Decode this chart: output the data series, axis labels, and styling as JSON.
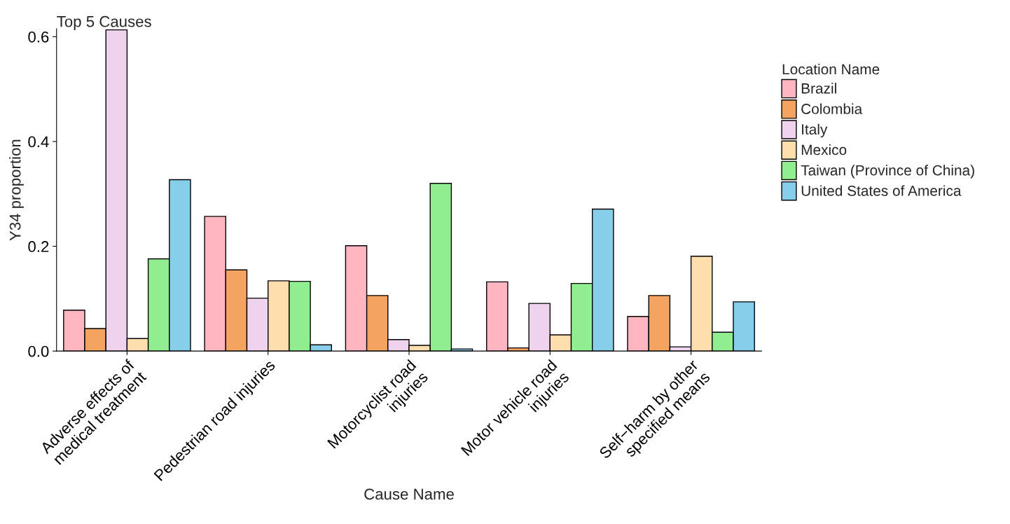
{
  "chart_data": {
    "type": "bar",
    "title": "Top 5 Causes",
    "xlabel": "Cause Name",
    "ylabel": "Y34 proportion",
    "legend_title": "Location Name",
    "categories": [
      "Adverse effects of\nmedical treatment",
      "Pedestrian road injuries",
      "Motorcyclist road\ninjuries",
      "Motor vehicle road\ninjuries",
      "Self−harm by other\nspecified means"
    ],
    "series": [
      {
        "name": "Brazil",
        "color": "#ffb6c1",
        "values": [
          0.078,
          0.257,
          0.201,
          0.132,
          0.066
        ]
      },
      {
        "name": "Colombia",
        "color": "#f4a460",
        "values": [
          0.043,
          0.155,
          0.106,
          0.006,
          0.106
        ]
      },
      {
        "name": "Italy",
        "color": "#eed2ee",
        "values": [
          0.613,
          0.101,
          0.022,
          0.091,
          0.008
        ]
      },
      {
        "name": "Mexico",
        "color": "#ffdead",
        "values": [
          0.024,
          0.134,
          0.011,
          0.031,
          0.181
        ]
      },
      {
        "name": "Taiwan (Province of China)",
        "color": "#90ee90",
        "values": [
          0.176,
          0.133,
          0.32,
          0.129,
          0.036
        ]
      },
      {
        "name": "United States of America",
        "color": "#87ceeb",
        "values": [
          0.327,
          0.012,
          0.004,
          0.271,
          0.094
        ]
      }
    ],
    "ylim": [
      0,
      0.615
    ],
    "yticks": [
      {
        "value": 0,
        "label": "0.0"
      },
      {
        "value": 0.2,
        "label": "0.2"
      },
      {
        "value": 0.4,
        "label": "0.4"
      },
      {
        "value": 0.6,
        "label": "0.6"
      }
    ],
    "grid": false,
    "legend": "right"
  }
}
